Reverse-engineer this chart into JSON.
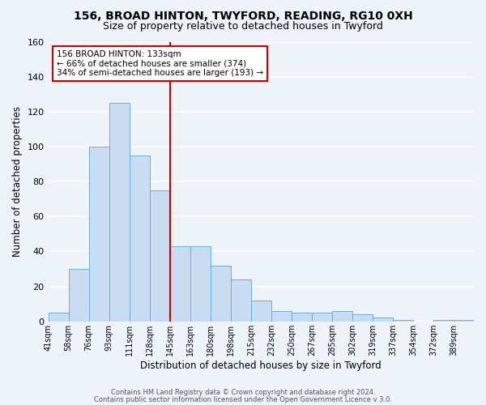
{
  "title": "156, BROAD HINTON, TWYFORD, READING, RG10 0XH",
  "subtitle": "Size of property relative to detached houses in Twyford",
  "xlabel": "Distribution of detached houses by size in Twyford",
  "ylabel": "Number of detached properties",
  "bin_labels": [
    "41sqm",
    "58sqm",
    "76sqm",
    "93sqm",
    "111sqm",
    "128sqm",
    "145sqm",
    "163sqm",
    "180sqm",
    "198sqm",
    "215sqm",
    "232sqm",
    "250sqm",
    "267sqm",
    "285sqm",
    "302sqm",
    "319sqm",
    "337sqm",
    "354sqm",
    "372sqm",
    "389sqm"
  ],
  "bar_values": [
    5,
    30,
    100,
    125,
    95,
    75,
    43,
    43,
    32,
    24,
    12,
    6,
    5,
    5,
    6,
    4,
    2,
    1,
    0,
    1,
    1
  ],
  "bar_color": "#c8ddf2",
  "bar_edge_color": "#6aaed6",
  "vline_color": "#cc0000",
  "annotation_text": "156 BROAD HINTON: 133sqm\n← 66% of detached houses are smaller (374)\n34% of semi-detached houses are larger (193) →",
  "annotation_box_color": "#ffffff",
  "annotation_box_edge": "#cc0000",
  "ylim": [
    0,
    160
  ],
  "yticks": [
    0,
    20,
    40,
    60,
    80,
    100,
    120,
    140,
    160
  ],
  "footer1": "Contains HM Land Registry data © Crown copyright and database right 2024.",
  "footer2": "Contains public sector information licensed under the Open Government Licence v 3.0.",
  "background_color": "#eef2f9",
  "plot_bg_color": "#eef2f9",
  "grid_color": "#ffffff",
  "title_fontsize": 10,
  "subtitle_fontsize": 9
}
